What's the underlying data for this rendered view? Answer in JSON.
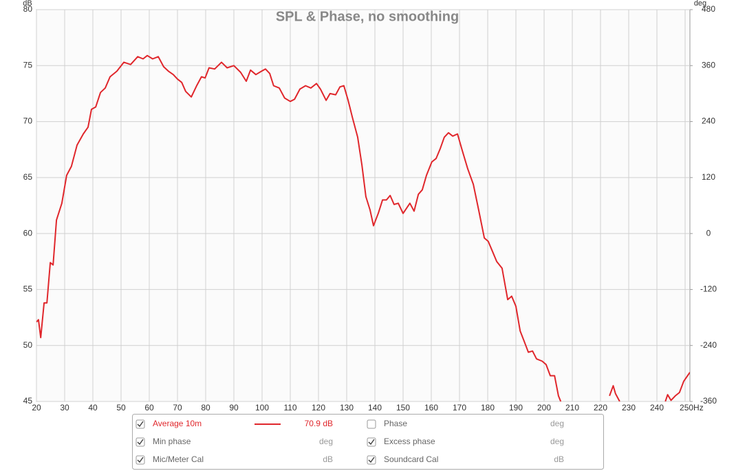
{
  "chart_data": {
    "type": "line",
    "title": "SPL & Phase, no smoothing",
    "y_label": "dB",
    "y2_label": "deg",
    "x": [
      20,
      20.7,
      21.5,
      22.7,
      23.7,
      24.9,
      25.9,
      27.1,
      29,
      30.7,
      32.4,
      34.4,
      36.6,
      38.3,
      39.5,
      41,
      42.7,
      44.4,
      46.1,
      48.5,
      51,
      53.4,
      55.9,
      57.8,
      59.3,
      61.2,
      63.2,
      65.1,
      66.8,
      68.5,
      70,
      71.5,
      72.9,
      74.9,
      76.8,
      78.5,
      79.8,
      81.2,
      83.2,
      85.6,
      87.6,
      90,
      92.4,
      94.4,
      95.9,
      97.8,
      99.8,
      101.2,
      102.7,
      104.1,
      106.1,
      108,
      110,
      111.5,
      113.4,
      115.4,
      117.3,
      119.3,
      120.7,
      122.7,
      124.1,
      126.1,
      127.6,
      129,
      130.5,
      132,
      133.9,
      135.4,
      136.8,
      138.3,
      139.5,
      141.2,
      142.7,
      144.1,
      145.4,
      146.8,
      148.3,
      150,
      152.4,
      153.9,
      155.4,
      156.8,
      158.3,
      160.2,
      161.7,
      163.2,
      164.6,
      166.1,
      167.6,
      169.3,
      171,
      172.9,
      174.9,
      176.8,
      178.8,
      180.2,
      181.7,
      183.2,
      185.1,
      187.1,
      188.5,
      190,
      191.5,
      192.9,
      194.4,
      195.9,
      197.3,
      199.3,
      200.7,
      202.2,
      203.7,
      205.1,
      205.9,
      206.8,
      207.6,
      208.4,
      223.2,
      224.5,
      225.3,
      226.8,
      227.5,
      243,
      243.8,
      245,
      246.5,
      248,
      249.5,
      251.7
    ],
    "series": [
      {
        "name": "Average 10m",
        "color": "#e0262b",
        "checked": true,
        "readout": "70.9 dB",
        "values": [
          52.1,
          52.3,
          50.7,
          53.8,
          53.8,
          57.4,
          57.2,
          61.2,
          62.7,
          65.2,
          66,
          67.9,
          68.9,
          69.5,
          71.1,
          71.3,
          72.6,
          73,
          74,
          74.5,
          75.3,
          75.1,
          75.8,
          75.6,
          75.9,
          75.6,
          75.8,
          74.9,
          74.5,
          74.2,
          73.8,
          73.5,
          72.7,
          72.2,
          73.2,
          74,
          73.9,
          74.8,
          74.7,
          75.3,
          74.8,
          75,
          74.4,
          73.6,
          74.6,
          74.2,
          74.5,
          74.7,
          74.3,
          73.2,
          73,
          72.1,
          71.8,
          72,
          72.9,
          73.2,
          73,
          73.4,
          72.9,
          71.9,
          72.5,
          72.4,
          73.1,
          73.2,
          71.9,
          70.4,
          68.6,
          66.1,
          63.3,
          62.1,
          60.7,
          61.8,
          63,
          63,
          63.4,
          62.6,
          62.7,
          61.8,
          62.7,
          62,
          63.5,
          63.9,
          65.2,
          66.4,
          66.7,
          67.6,
          68.6,
          69,
          68.7,
          68.9,
          67.4,
          65.8,
          64.4,
          62.1,
          59.6,
          59.3,
          58.4,
          57.5,
          56.9,
          54.1,
          54.4,
          53.5,
          51.3,
          50.4,
          49.4,
          49.5,
          48.8,
          48.6,
          48.3,
          47.3,
          47.3,
          45.5,
          45,
          null,
          45.3,
          null,
          45.5,
          46.4,
          45.7,
          45,
          null,
          45,
          45.6,
          45.1,
          45.5,
          45.8,
          46.8,
          47.6
        ]
      }
    ],
    "other_traces": [
      {
        "name": "Phase",
        "unit": "deg",
        "checked": false
      },
      {
        "name": "Min phase",
        "unit": "deg",
        "checked": true
      },
      {
        "name": "Excess phase",
        "unit": "deg",
        "checked": true
      },
      {
        "name": "Mic/Meter Cal",
        "unit": "dB",
        "checked": true
      },
      {
        "name": "Soundcard Cal",
        "unit": "dB",
        "checked": true
      }
    ],
    "xlim": [
      20,
      251.7
    ],
    "xticks": [
      20,
      30,
      40,
      50,
      60,
      70,
      80,
      90,
      100,
      110,
      120,
      130,
      140,
      150,
      160,
      170,
      180,
      190,
      200,
      210,
      220,
      230,
      240,
      {
        "value": 250,
        "label": "250Hz"
      }
    ],
    "ylim": [
      45,
      80
    ],
    "yticks": [
      45,
      50,
      55,
      60,
      65,
      70,
      75,
      80
    ],
    "y2lim": [
      -360,
      480
    ],
    "y2ticks": [
      -360,
      -240,
      -120,
      0,
      120,
      240,
      360,
      480
    ],
    "grid": true
  }
}
